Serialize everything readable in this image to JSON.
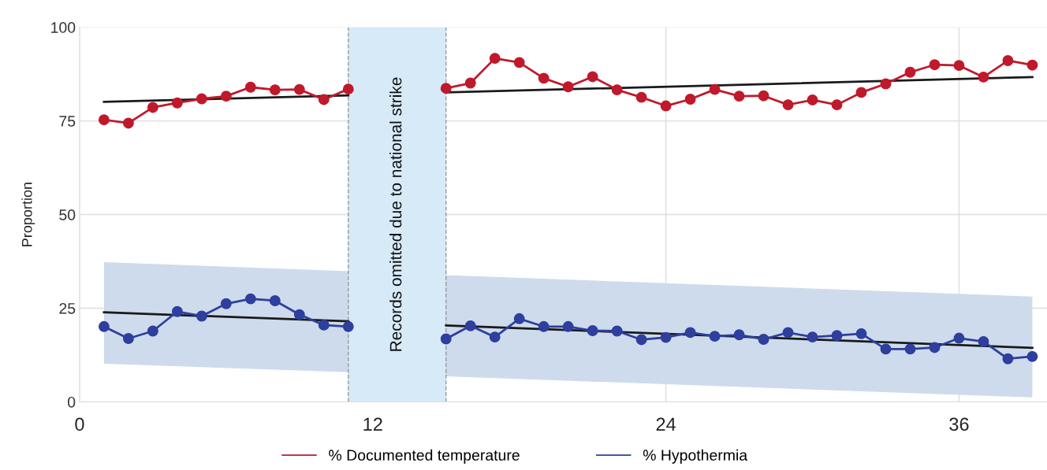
{
  "chart_data": {
    "type": "line",
    "ylabel": "Proportion",
    "xlim": [
      0,
      39.6
    ],
    "xticks": [
      0,
      12,
      24,
      36
    ],
    "ylim": [
      0,
      100
    ],
    "yticks": [
      0,
      25,
      50,
      75,
      100
    ],
    "grid": true,
    "legend": "bottom",
    "marker": "circle",
    "line_style": "solid",
    "bands": [
      {
        "axis": "x",
        "from": 11,
        "to": 15,
        "label": "Records omitted due to national strike",
        "color": "#d6eaf8"
      }
    ],
    "ref_lines": [
      {
        "axis": "x",
        "value": 11,
        "color": "#999999",
        "line_style": "dashed"
      },
      {
        "axis": "x",
        "value": 15,
        "color": "#999999",
        "line_style": "dashed"
      }
    ],
    "series": [
      {
        "name": "% Documented temperature",
        "color": "#c0192c",
        "x": [
          1,
          2,
          3,
          4,
          5,
          6,
          7,
          8,
          9,
          10,
          11,
          12,
          13,
          14,
          15,
          16,
          17,
          18,
          19,
          20,
          21,
          22,
          23,
          24,
          25,
          26,
          27,
          28,
          29,
          30,
          31,
          32,
          33,
          34,
          35,
          36,
          37,
          38,
          39
        ],
        "values": [
          75.3,
          74.4,
          78.6,
          79.8,
          80.9,
          81.6,
          84.0,
          83.3,
          83.4,
          80.7,
          83.5,
          null,
          null,
          null,
          83.7,
          85.1,
          91.7,
          90.6,
          86.4,
          84.1,
          86.8,
          83.3,
          81.3,
          79.0,
          80.8,
          83.4,
          81.6,
          81.7,
          79.3,
          80.6,
          79.3,
          82.6,
          84.9,
          88.0,
          90.0,
          89.8,
          86.7,
          91.1,
          89.9
        ]
      },
      {
        "name": "% Hypothermia",
        "color": "#2e3f9e",
        "x": [
          1,
          2,
          3,
          4,
          5,
          6,
          7,
          8,
          9,
          10,
          11,
          12,
          13,
          14,
          15,
          16,
          17,
          18,
          19,
          20,
          21,
          22,
          23,
          24,
          25,
          26,
          27,
          28,
          29,
          30,
          31,
          32,
          33,
          34,
          35,
          36,
          37,
          38,
          39
        ],
        "values": [
          20.1,
          16.9,
          18.9,
          24.1,
          22.9,
          26.2,
          27.5,
          27.0,
          23.3,
          20.5,
          20.1,
          null,
          null,
          null,
          16.8,
          20.3,
          17.3,
          22.2,
          20.1,
          20.1,
          19.0,
          18.9,
          16.6,
          17.2,
          18.5,
          17.5,
          17.9,
          16.7,
          18.5,
          17.3,
          17.7,
          18.2,
          14.1,
          14.1,
          14.5,
          17.0,
          16.1,
          11.5,
          12.1
        ]
      },
      {
        "type": "line",
        "color": "#1a1a1a",
        "marker": "none",
        "x": [
          1,
          11
        ],
        "values": [
          80.1,
          81.8
        ]
      },
      {
        "type": "line",
        "color": "#1a1a1a",
        "marker": "none",
        "x": [
          15,
          39
        ],
        "values": [
          82.6,
          86.7
        ]
      },
      {
        "type": "line",
        "color": "#1a1a1a",
        "marker": "none",
        "x": [
          1,
          11
        ],
        "values": [
          23.9,
          21.5
        ],
        "lower": [
          10.2,
          7.9
        ],
        "upper": [
          37.3,
          34.9
        ]
      },
      {
        "type": "line",
        "color": "#1a1a1a",
        "marker": "none",
        "x": [
          15,
          39
        ],
        "values": [
          20.4,
          14.4
        ],
        "lower": [
          6.8,
          1.2
        ],
        "upper": [
          33.8,
          28.1
        ]
      }
    ]
  }
}
